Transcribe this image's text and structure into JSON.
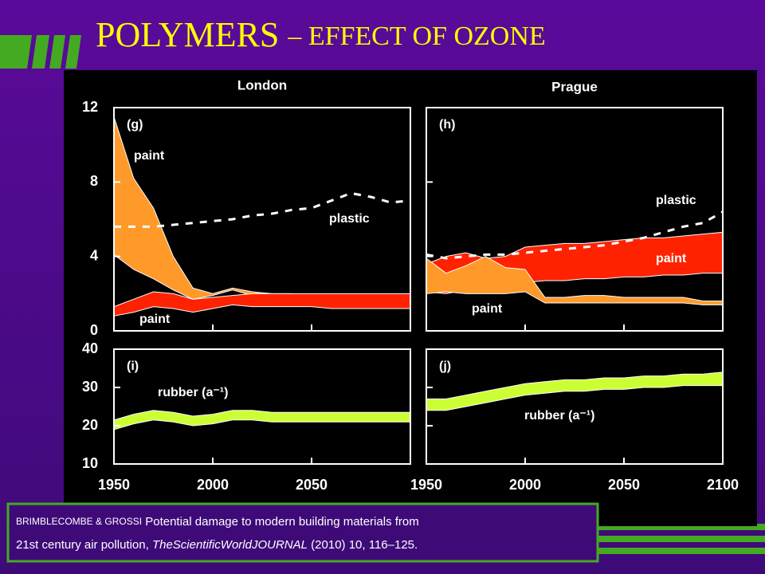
{
  "slide": {
    "title_main": "POLYMERS",
    "title_sub": "– EFFECT OF OZONE",
    "citation": {
      "authors": "BRIMBLECOMBE & GROSSI",
      "text": "Potential damage to modern building materials from",
      "text2": "21st century air pollution,",
      "journal": "TheScientificWorldJOURNAL",
      "ref": "(2010) 10, 116–125."
    }
  },
  "chart_data": [
    {
      "type": "band",
      "title": "London",
      "label": "(g)",
      "x": [
        1950,
        1960,
        1970,
        1980,
        1990,
        2000,
        2010,
        2020,
        2030,
        2040,
        2050,
        2060,
        2070,
        2080,
        2090,
        2100
      ],
      "xlim": [
        1950,
        2100
      ],
      "ylim": [
        0,
        12
      ],
      "yticks": [
        0,
        4,
        8,
        12
      ],
      "series": [
        {
          "name": "paint",
          "color": "#ff9a2a",
          "upper": [
            11.5,
            8.2,
            6.6,
            4.0,
            2.3,
            2.0,
            2.3,
            2.1,
            2.0,
            2.0,
            1.9,
            1.7,
            1.7,
            1.6,
            1.6,
            1.6
          ],
          "lower": [
            4.1,
            3.3,
            2.8,
            2.2,
            1.7,
            1.9,
            2.2,
            1.9,
            1.8,
            1.8,
            1.8,
            1.5,
            1.4,
            1.4,
            1.4,
            1.4
          ]
        },
        {
          "name": "paint",
          "color": "#ff2200",
          "upper": [
            1.3,
            1.7,
            2.1,
            2.0,
            1.7,
            1.8,
            1.9,
            2.0,
            2.0,
            2.0,
            2.0,
            2.0,
            2.0,
            2.0,
            2.0,
            2.0
          ],
          "lower": [
            0.8,
            1.0,
            1.3,
            1.2,
            1.0,
            1.2,
            1.4,
            1.3,
            1.3,
            1.3,
            1.3,
            1.2,
            1.2,
            1.2,
            1.2,
            1.2
          ]
        },
        {
          "name": "plastic",
          "color": "#ffffff",
          "dashed": true,
          "values": [
            5.6,
            5.6,
            5.6,
            5.7,
            5.8,
            5.9,
            6.0,
            6.2,
            6.3,
            6.5,
            6.6,
            7.0,
            7.4,
            7.2,
            6.9,
            7.0
          ]
        }
      ]
    },
    {
      "type": "band",
      "title": "Prague",
      "label": "(h)",
      "x": [
        1950,
        1960,
        1970,
        1980,
        1990,
        2000,
        2010,
        2020,
        2030,
        2040,
        2050,
        2060,
        2070,
        2080,
        2090,
        2100
      ],
      "xlim": [
        1950,
        2100
      ],
      "ylim": [
        0,
        12
      ],
      "series": [
        {
          "name": "paint",
          "color": "#ff2200",
          "upper": [
            3.6,
            4.0,
            4.2,
            3.9,
            4.0,
            4.5,
            4.6,
            4.7,
            4.7,
            4.8,
            4.9,
            5.0,
            5.0,
            5.1,
            5.2,
            5.3
          ],
          "lower": [
            2.1,
            2.0,
            2.2,
            2.4,
            2.5,
            2.6,
            2.7,
            2.7,
            2.8,
            2.8,
            2.9,
            2.9,
            3.0,
            3.0,
            3.1,
            3.1
          ]
        },
        {
          "name": "paint",
          "color": "#ff9a2a",
          "upper": [
            3.9,
            3.1,
            3.5,
            4.0,
            3.4,
            3.3,
            1.8,
            1.8,
            1.9,
            1.9,
            1.8,
            1.8,
            1.8,
            1.8,
            1.6,
            1.6
          ],
          "lower": [
            2.0,
            2.1,
            2.0,
            2.0,
            2.0,
            2.1,
            1.5,
            1.5,
            1.5,
            1.5,
            1.5,
            1.5,
            1.5,
            1.5,
            1.4,
            1.4
          ]
        },
        {
          "name": "plastic",
          "color": "#ffffff",
          "dashed": true,
          "values": [
            4.1,
            3.9,
            4.0,
            4.1,
            4.1,
            4.2,
            4.3,
            4.4,
            4.5,
            4.6,
            4.8,
            5.0,
            5.3,
            5.6,
            5.8,
            6.4
          ]
        }
      ]
    },
    {
      "type": "band",
      "label": "(i)",
      "x": [
        1950,
        1960,
        1970,
        1980,
        1990,
        2000,
        2010,
        2020,
        2030,
        2040,
        2050,
        2060,
        2070,
        2080,
        2090,
        2100
      ],
      "xlim": [
        1950,
        2100
      ],
      "xticks": [
        1950,
        2000,
        2050
      ],
      "ylim": [
        10,
        40
      ],
      "yticks": [
        10,
        20,
        30,
        40
      ],
      "series": [
        {
          "name": "rubber (a⁻¹)",
          "color": "#ccff33",
          "upper": [
            21.5,
            23,
            24,
            23.5,
            22.5,
            23,
            24,
            24,
            23.5,
            23.5,
            23.5,
            23.5,
            23.5,
            23.5,
            23.5,
            23.5
          ],
          "lower": [
            19,
            20.5,
            21.5,
            21,
            20,
            20.5,
            21.5,
            21.5,
            21,
            21,
            21,
            21,
            21,
            21,
            21,
            21
          ]
        }
      ]
    },
    {
      "type": "band",
      "label": "(j)",
      "x": [
        1950,
        1960,
        1970,
        1980,
        1990,
        2000,
        2010,
        2020,
        2030,
        2040,
        2050,
        2060,
        2070,
        2080,
        2090,
        2100
      ],
      "xlim": [
        1950,
        2100
      ],
      "xticks": [
        1950,
        2000,
        2050,
        2100
      ],
      "ylim": [
        10,
        40
      ],
      "series": [
        {
          "name": "rubber (a⁻¹)",
          "color": "#ccff33",
          "upper": [
            27,
            27,
            28,
            29,
            30,
            31,
            31.5,
            32,
            32,
            32.5,
            32.5,
            33,
            33,
            33.5,
            33.5,
            34
          ],
          "lower": [
            24,
            24,
            25,
            26,
            27,
            28,
            28.5,
            29,
            29,
            29.5,
            29.5,
            30,
            30,
            30.5,
            30.5,
            30.5
          ]
        }
      ]
    }
  ]
}
